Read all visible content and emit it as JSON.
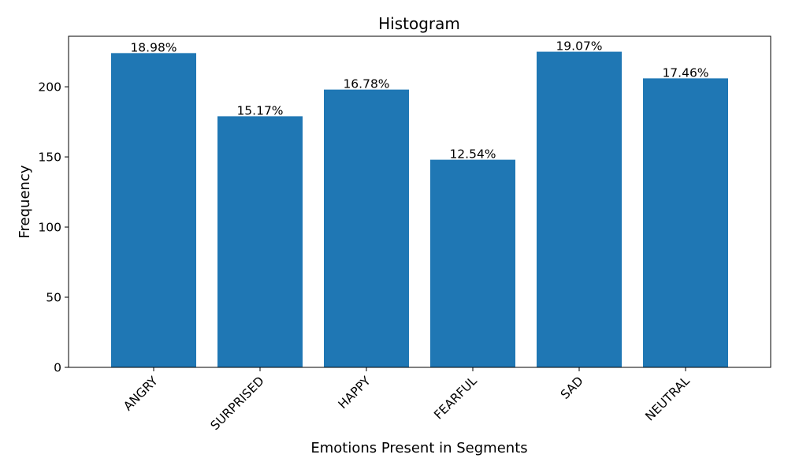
{
  "chart_data": {
    "type": "bar",
    "title": "Histogram",
    "xlabel": "Emotions Present in Segments",
    "ylabel": "Frequency",
    "categories": [
      "ANGRY",
      "SURPRISED",
      "HAPPY",
      "FEARFUL",
      "SAD",
      "NEUTRAL"
    ],
    "values": [
      224,
      179,
      198,
      148,
      225,
      206
    ],
    "data_labels": [
      "18.98%",
      "15.17%",
      "16.78%",
      "12.54%",
      "19.07%",
      "17.46%"
    ],
    "ylim": [
      0,
      236
    ],
    "yticks": [
      0,
      50,
      100,
      150,
      200
    ],
    "bar_color": "#1f77b4",
    "grid": false,
    "legend": "none"
  }
}
